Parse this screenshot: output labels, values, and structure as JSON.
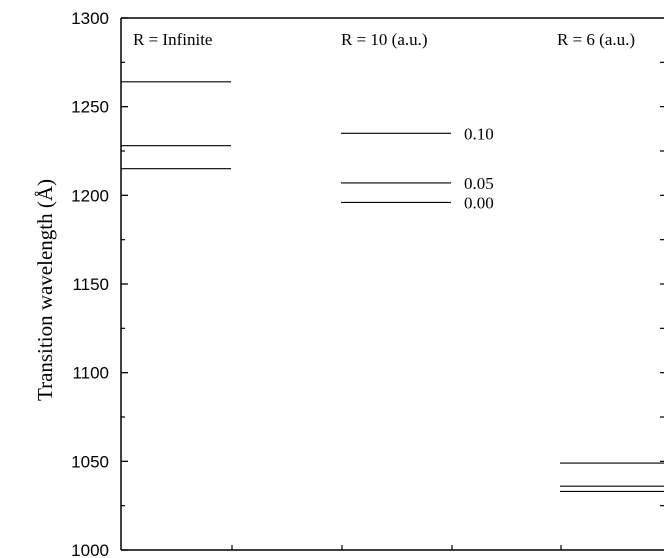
{
  "chart_data": {
    "type": "line",
    "ylabel": "Transition wavelength (Å)",
    "ylim": [
      1000,
      1300
    ],
    "y_ticks": [
      "1000",
      "1050",
      "1100",
      "1150",
      "1200",
      "1250",
      "1300"
    ],
    "y_minor_step": 25,
    "grid": false,
    "columns": [
      {
        "label": "R = Infinite",
        "levels": [
          {
            "y": 1264
          },
          {
            "y": 1228
          },
          {
            "y": 1215
          }
        ]
      },
      {
        "label": "R = 10 (a.u.)",
        "levels": [
          {
            "y": 1235,
            "label": "0.10"
          },
          {
            "y": 1207,
            "label": "0.05"
          },
          {
            "y": 1196,
            "label": "0.00"
          }
        ]
      },
      {
        "label": "R = 6 (a.u.)",
        "levels": [
          {
            "y": 1049
          },
          {
            "y": 1036
          },
          {
            "y": 1033
          }
        ]
      }
    ]
  }
}
